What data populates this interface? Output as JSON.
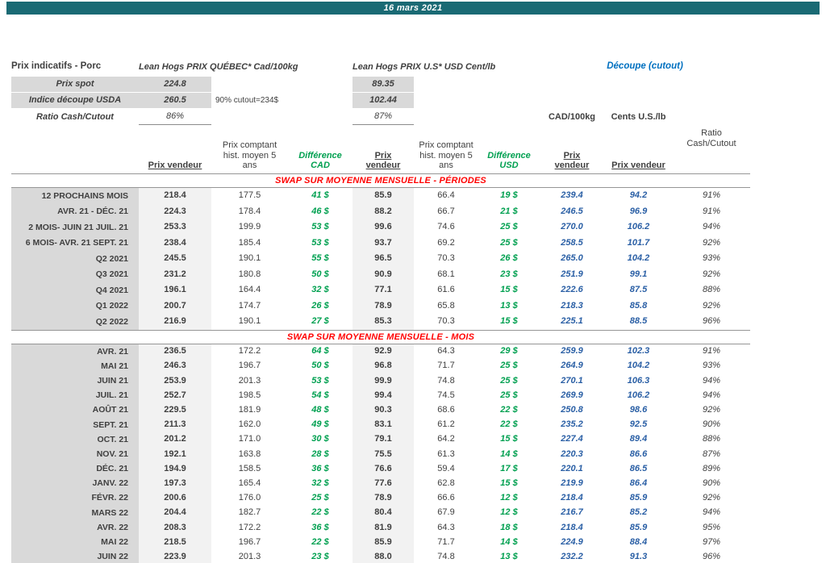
{
  "title_bar": {
    "date": "16 mars 2021"
  },
  "header": {
    "left_label": "Prix indicatifs - Porc",
    "quebec_label": "Lean Hogs PRIX QUÉBEC* Cad/100kg",
    "us_label": "Lean Hogs PRIX U.S* USD Cent/lb",
    "cutout_label": "Découpe (cutout)"
  },
  "spot_rows": {
    "prix_spot": {
      "label": "Prix spot",
      "cad": "224.8",
      "usd": "89.35"
    },
    "indice": {
      "label": "Indice découpe USDA",
      "cad": "260.5",
      "usd": "102.44",
      "note": "90% cutout=234$"
    },
    "ratio": {
      "label": "Ratio Cash/Cutout",
      "cad": "86%",
      "usd": "87%"
    }
  },
  "column_headers": {
    "prix_vendeur_cad": "Prix vendeur",
    "prix_comptant_cad": "Prix comptant\nhist. moyen 5\nans",
    "difference_cad": "Différence\nCAD",
    "prix_vendeur_usd": "Prix\nvendeur",
    "prix_comptant_usd": "Prix comptant\nhist. moyen 5\nans",
    "difference_usd": "Différence\nUSD",
    "group_cad": "CAD/100kg",
    "group_us": "Cents U.S./lb",
    "prix_vendeur_cutout_cad": "Prix\nvendeur",
    "prix_vendeur_cutout_us": "Prix vendeur",
    "ratio": "Ratio\nCash/Cutout"
  },
  "colors": {
    "titlebar_teal": "#1a6a74",
    "label_gray": "#d9d9d9",
    "shade_gray": "#f2f2f2",
    "green": "#00a050",
    "red": "#ff0000",
    "blue_label": "#0070c0",
    "blue_values": "#2a5fa5"
  },
  "sections": [
    {
      "header": "SWAP SUR MOYENNE MENSUELLE - PÉRIODES",
      "rows": [
        {
          "label": "12 PROCHAINS MOIS",
          "pv_cad": "218.4",
          "pc_cad": "177.5",
          "diff_cad": "41 $",
          "pv_usd": "85.9",
          "pc_usd": "66.4",
          "diff_usd": "19 $",
          "cutout_cad": "239.4",
          "cutout_us": "94.2",
          "ratio": "91%"
        },
        {
          "label": "AVR. 21 -  DÉC. 21",
          "pv_cad": "224.3",
          "pc_cad": "178.4",
          "diff_cad": "46 $",
          "pv_usd": "88.2",
          "pc_usd": "66.7",
          "diff_usd": "21 $",
          "cutout_cad": "246.5",
          "cutout_us": "96.9",
          "ratio": "91%"
        },
        {
          "label": "2 MOIS- JUIN 21 JUIL. 21",
          "pv_cad": "253.3",
          "pc_cad": "199.9",
          "diff_cad": "53 $",
          "pv_usd": "99.6",
          "pc_usd": "74.6",
          "diff_usd": "25 $",
          "cutout_cad": "270.0",
          "cutout_us": "106.2",
          "ratio": "94%"
        },
        {
          "label": "6 MOIS- AVR. 21 SEPT. 21",
          "pv_cad": "238.4",
          "pc_cad": "185.4",
          "diff_cad": "53 $",
          "pv_usd": "93.7",
          "pc_usd": "69.2",
          "diff_usd": "25 $",
          "cutout_cad": "258.5",
          "cutout_us": "101.7",
          "ratio": "92%"
        },
        {
          "label": "Q2 2021",
          "pv_cad": "245.5",
          "pc_cad": "190.1",
          "diff_cad": "55 $",
          "pv_usd": "96.5",
          "pc_usd": "70.3",
          "diff_usd": "26 $",
          "cutout_cad": "265.0",
          "cutout_us": "104.2",
          "ratio": "93%"
        },
        {
          "label": "Q3 2021",
          "pv_cad": "231.2",
          "pc_cad": "180.8",
          "diff_cad": "50 $",
          "pv_usd": "90.9",
          "pc_usd": "68.1",
          "diff_usd": "23 $",
          "cutout_cad": "251.9",
          "cutout_us": "99.1",
          "ratio": "92%"
        },
        {
          "label": "Q4 2021",
          "pv_cad": "196.1",
          "pc_cad": "164.4",
          "diff_cad": "32 $",
          "pv_usd": "77.1",
          "pc_usd": "61.6",
          "diff_usd": "15 $",
          "cutout_cad": "222.6",
          "cutout_us": "87.5",
          "ratio": "88%"
        },
        {
          "label": "Q1 2022",
          "pv_cad": "200.7",
          "pc_cad": "174.7",
          "diff_cad": "26 $",
          "pv_usd": "78.9",
          "pc_usd": "65.8",
          "diff_usd": "13 $",
          "cutout_cad": "218.3",
          "cutout_us": "85.8",
          "ratio": "92%"
        },
        {
          "label": "Q2 2022",
          "pv_cad": "216.9",
          "pc_cad": "190.1",
          "diff_cad": "27 $",
          "pv_usd": "85.3",
          "pc_usd": "70.3",
          "diff_usd": "15 $",
          "cutout_cad": "225.1",
          "cutout_us": "88.5",
          "ratio": "96%"
        }
      ]
    },
    {
      "header": "SWAP SUR MOYENNE MENSUELLE - MOIS",
      "rows": [
        {
          "label": "AVR. 21",
          "pv_cad": "236.5",
          "pc_cad": "172.2",
          "diff_cad": "64 $",
          "pv_usd": "92.9",
          "pc_usd": "64.3",
          "diff_usd": "29 $",
          "cutout_cad": "259.9",
          "cutout_us": "102.3",
          "ratio": "91%"
        },
        {
          "label": "MAI 21",
          "pv_cad": "246.3",
          "pc_cad": "196.7",
          "diff_cad": "50 $",
          "pv_usd": "96.8",
          "pc_usd": "71.7",
          "diff_usd": "25 $",
          "cutout_cad": "264.9",
          "cutout_us": "104.2",
          "ratio": "93%"
        },
        {
          "label": "JUIN 21",
          "pv_cad": "253.9",
          "pc_cad": "201.3",
          "diff_cad": "53 $",
          "pv_usd": "99.9",
          "pc_usd": "74.8",
          "diff_usd": "25 $",
          "cutout_cad": "270.1",
          "cutout_us": "106.3",
          "ratio": "94%"
        },
        {
          "label": "JUIL. 21",
          "pv_cad": "252.7",
          "pc_cad": "198.5",
          "diff_cad": "54 $",
          "pv_usd": "99.4",
          "pc_usd": "74.5",
          "diff_usd": "25 $",
          "cutout_cad": "269.9",
          "cutout_us": "106.2",
          "ratio": "94%"
        },
        {
          "label": "AOÛT 21",
          "pv_cad": "229.5",
          "pc_cad": "181.9",
          "diff_cad": "48 $",
          "pv_usd": "90.3",
          "pc_usd": "68.6",
          "diff_usd": "22 $",
          "cutout_cad": "250.8",
          "cutout_us": "98.6",
          "ratio": "92%"
        },
        {
          "label": "SEPT. 21",
          "pv_cad": "211.3",
          "pc_cad": "162.0",
          "diff_cad": "49 $",
          "pv_usd": "83.1",
          "pc_usd": "61.2",
          "diff_usd": "22 $",
          "cutout_cad": "235.2",
          "cutout_us": "92.5",
          "ratio": "90%"
        },
        {
          "label": "OCT. 21",
          "pv_cad": "201.2",
          "pc_cad": "171.0",
          "diff_cad": "30 $",
          "pv_usd": "79.1",
          "pc_usd": "64.2",
          "diff_usd": "15 $",
          "cutout_cad": "227.4",
          "cutout_us": "89.4",
          "ratio": "88%"
        },
        {
          "label": "NOV. 21",
          "pv_cad": "192.1",
          "pc_cad": "163.8",
          "diff_cad": "28 $",
          "pv_usd": "75.5",
          "pc_usd": "61.3",
          "diff_usd": "14 $",
          "cutout_cad": "220.3",
          "cutout_us": "86.6",
          "ratio": "87%"
        },
        {
          "label": "DÉC. 21",
          "pv_cad": "194.9",
          "pc_cad": "158.5",
          "diff_cad": "36 $",
          "pv_usd": "76.6",
          "pc_usd": "59.4",
          "diff_usd": "17 $",
          "cutout_cad": "220.1",
          "cutout_us": "86.5",
          "ratio": "89%"
        },
        {
          "label": "JANV. 22",
          "pv_cad": "197.3",
          "pc_cad": "165.4",
          "diff_cad": "32 $",
          "pv_usd": "77.6",
          "pc_usd": "62.8",
          "diff_usd": "15 $",
          "cutout_cad": "219.9",
          "cutout_us": "86.4",
          "ratio": "90%"
        },
        {
          "label": "FÉVR. 22",
          "pv_cad": "200.6",
          "pc_cad": "176.0",
          "diff_cad": "25 $",
          "pv_usd": "78.9",
          "pc_usd": "66.6",
          "diff_usd": "12 $",
          "cutout_cad": "218.4",
          "cutout_us": "85.9",
          "ratio": "92%"
        },
        {
          "label": "MARS 22",
          "pv_cad": "204.4",
          "pc_cad": "182.7",
          "diff_cad": "22 $",
          "pv_usd": "80.4",
          "pc_usd": "67.9",
          "diff_usd": "12 $",
          "cutout_cad": "216.7",
          "cutout_us": "85.2",
          "ratio": "94%"
        },
        {
          "label": "AVR. 22",
          "pv_cad": "208.3",
          "pc_cad": "172.2",
          "diff_cad": "36 $",
          "pv_usd": "81.9",
          "pc_usd": "64.3",
          "diff_usd": "18 $",
          "cutout_cad": "218.4",
          "cutout_us": "85.9",
          "ratio": "95%"
        },
        {
          "label": "MAI 22",
          "pv_cad": "218.5",
          "pc_cad": "196.7",
          "diff_cad": "22 $",
          "pv_usd": "85.9",
          "pc_usd": "71.7",
          "diff_usd": "14 $",
          "cutout_cad": "224.9",
          "cutout_us": "88.4",
          "ratio": "97%"
        },
        {
          "label": "JUIN 22",
          "pv_cad": "223.9",
          "pc_cad": "201.3",
          "diff_cad": "23 $",
          "pv_usd": "88.0",
          "pc_usd": "74.8",
          "diff_usd": "13 $",
          "cutout_cad": "232.2",
          "cutout_us": "91.3",
          "ratio": "96%"
        }
      ]
    }
  ]
}
